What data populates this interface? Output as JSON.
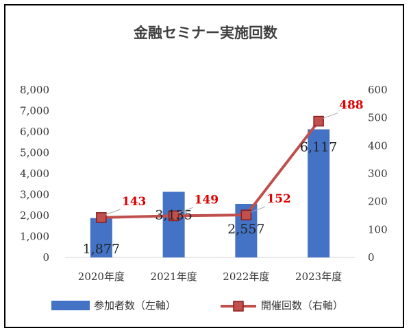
{
  "chart_data": {
    "type": "bar",
    "title": "金融セミナー実施回数",
    "categories": [
      "2020年度",
      "2021年度",
      "2022年度",
      "2023年度"
    ],
    "series": [
      {
        "name": "参加者数（左軸）",
        "type": "bar",
        "axis": "left",
        "values": [
          1877,
          3135,
          2557,
          6117
        ],
        "labels": [
          "1,877",
          "3,135",
          "2,557",
          "6,117"
        ],
        "color": "#4472c4"
      },
      {
        "name": "開催回数（右軸）",
        "type": "line",
        "axis": "right",
        "values": [
          143,
          149,
          152,
          488
        ],
        "labels": [
          "143",
          "149",
          "152",
          "488"
        ],
        "color": "#c0504d",
        "label_color": "#e00000"
      }
    ],
    "y_left": {
      "ylim": [
        0,
        8000
      ],
      "ticks": [
        "0",
        "1,000",
        "2,000",
        "3,000",
        "4,000",
        "5,000",
        "6,000",
        "7,000",
        "8,000"
      ]
    },
    "y_right": {
      "ylim": [
        0,
        600
      ],
      "ticks": [
        "0",
        "100",
        "200",
        "300",
        "400",
        "500",
        "600"
      ]
    },
    "grid": false,
    "legend_position": "bottom"
  }
}
